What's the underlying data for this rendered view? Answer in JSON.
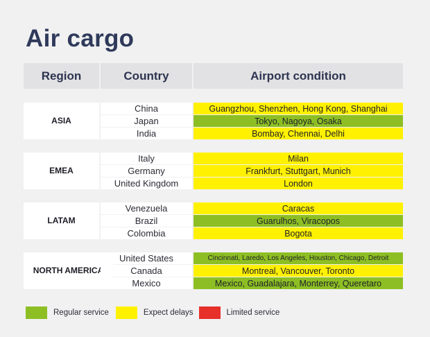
{
  "title": "Air cargo",
  "headers": {
    "region": "Region",
    "country": "Country",
    "condition": "Airport condition"
  },
  "colors": {
    "regular": "#8dbf24",
    "delays": "#fff100",
    "limited": "#e63029"
  },
  "groups": [
    {
      "region": "ASIA",
      "rows": [
        {
          "country": "China",
          "airports": "Guangzhou, Shenzhen, Hong Kong, Shanghai",
          "status": "delays"
        },
        {
          "country": "Japan",
          "airports": "Tokyo, Nagoya, Osaka",
          "status": "regular"
        },
        {
          "country": "India",
          "airports": "Bombay, Chennai, Delhi",
          "status": "delays"
        }
      ]
    },
    {
      "region": "EMEA",
      "rows": [
        {
          "country": "Italy",
          "airports": "Milan",
          "status": "delays"
        },
        {
          "country": "Germany",
          "airports": "Frankfurt, Stuttgart, Munich",
          "status": "delays"
        },
        {
          "country": "United Kingdom",
          "airports": "London",
          "status": "delays"
        }
      ]
    },
    {
      "region": "LATAM",
      "rows": [
        {
          "country": "Venezuela",
          "airports": "Caracas",
          "status": "delays"
        },
        {
          "country": "Brazil",
          "airports": "Guarulhos, Viracopos",
          "status": "regular"
        },
        {
          "country": "Colombia",
          "airports": "Bogota",
          "status": "delays"
        }
      ]
    },
    {
      "region": "NORTH AMERICA",
      "rows": [
        {
          "country": "United States",
          "airports": "Cincinnati, Laredo, Los Angeles, Houston, Chicago, Detroit",
          "status": "regular"
        },
        {
          "country": "Canada",
          "airports": "Montreal, Vancouver, Toronto",
          "status": "delays"
        },
        {
          "country": "Mexico",
          "airports": "Mexico, Guadalajara, Monterrey, Queretaro",
          "status": "regular"
        }
      ]
    }
  ],
  "legend": [
    {
      "label": "Regular service",
      "status": "regular"
    },
    {
      "label": "Expect delays",
      "status": "delays"
    },
    {
      "label": "Limited service",
      "status": "limited"
    }
  ]
}
